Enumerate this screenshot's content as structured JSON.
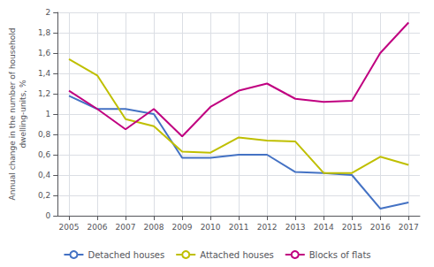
{
  "chart_data": {
    "type": "line",
    "x": [
      2005,
      2006,
      2007,
      2008,
      2009,
      2010,
      2011,
      2012,
      2013,
      2014,
      2015,
      2016,
      2017
    ],
    "xlim": [
      2004.6,
      2017.4
    ],
    "xticks": [
      2005,
      2006,
      2007,
      2008,
      2009,
      2010,
      2011,
      2012,
      2013,
      2014,
      2015,
      2016,
      2017
    ],
    "y_label": "Annual change in the number of household\ndwelling-units, %",
    "ylim": [
      0,
      2.0
    ],
    "yticks": [
      0,
      {
        "value": 0.2,
        "label": "0,2"
      },
      {
        "value": 0.4,
        "label": "0,4"
      },
      {
        "value": 0.6,
        "label": "0,6"
      },
      {
        "value": 0.8,
        "label": "0,8"
      },
      1.0,
      {
        "value": 1.2,
        "label": "1,2"
      },
      {
        "value": 1.4,
        "label": "1,4"
      },
      {
        "value": 1.6,
        "label": "1,6"
      },
      {
        "value": 1.8,
        "label": "1,8"
      },
      2.0
    ],
    "series": [
      {
        "name": "Detached houses",
        "color": "#4472c4",
        "values": [
          1.18,
          1.05,
          1.05,
          1.0,
          0.57,
          0.57,
          0.6,
          0.6,
          0.43,
          0.42,
          0.4,
          0.07,
          0.13
        ]
      },
      {
        "name": "Attached houses",
        "color": "#bfbf00",
        "values": [
          1.54,
          1.38,
          0.95,
          0.88,
          0.63,
          0.62,
          0.77,
          0.74,
          0.73,
          0.42,
          0.42,
          0.58,
          0.5
        ]
      },
      {
        "name": "Blocks of flats",
        "color": "#c00080",
        "values": [
          1.23,
          1.05,
          0.85,
          1.05,
          0.78,
          1.07,
          1.23,
          1.3,
          1.15,
          1.12,
          1.13,
          1.6,
          1.9
        ]
      }
    ],
    "grid": true,
    "legend": "bottom"
  }
}
